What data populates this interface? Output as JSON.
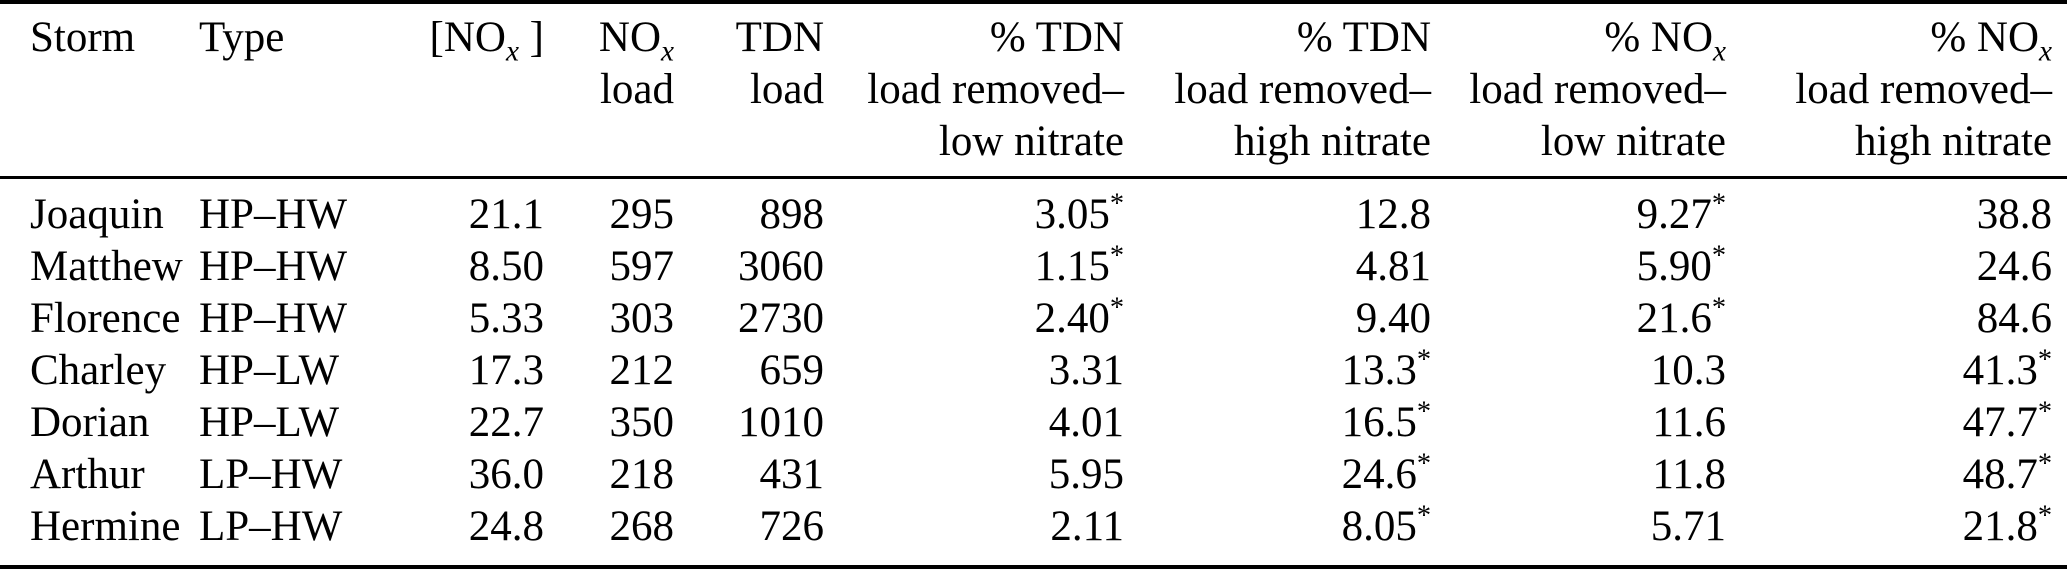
{
  "page": {
    "background": "#ffffff",
    "text_color": "#000000",
    "rule_color": "#000000"
  },
  "table": {
    "columns": [
      {
        "id": "storm",
        "align": "left",
        "label_lines": [
          "Storm"
        ]
      },
      {
        "id": "type",
        "align": "left",
        "label_lines": [
          "Type"
        ]
      },
      {
        "id": "nox-conc",
        "align": "right",
        "label_lines": [
          "[NO_x ]"
        ]
      },
      {
        "id": "nox-load",
        "align": "right",
        "label_lines": [
          "NO_x",
          "load"
        ]
      },
      {
        "id": "tdn-load",
        "align": "right",
        "label_lines": [
          "TDN",
          "load"
        ]
      },
      {
        "id": "pct-tdn-low",
        "align": "right",
        "label_lines": [
          "% TDN",
          "load removed–",
          "low nitrate"
        ]
      },
      {
        "id": "pct-tdn-high",
        "align": "right",
        "label_lines": [
          "% TDN",
          "load removed–",
          "high nitrate"
        ]
      },
      {
        "id": "pct-nox-low",
        "align": "right",
        "label_lines": [
          "% NO_x",
          "load removed–",
          "low nitrate"
        ]
      },
      {
        "id": "pct-nox-high",
        "align": "right",
        "label_lines": [
          "% NO_x",
          "load removed–",
          "high nitrate"
        ]
      }
    ],
    "rows": [
      [
        "Joaquin",
        "HP–HW",
        "21.1",
        "295",
        "898",
        "3.05*",
        "12.8",
        "9.27*",
        "38.8"
      ],
      [
        "Matthew",
        "HP–HW",
        "8.50",
        "597",
        "3060",
        "1.15*",
        "4.81",
        "5.90*",
        "24.6"
      ],
      [
        "Florence",
        "HP–HW",
        "5.33",
        "303",
        "2730",
        "2.40*",
        "9.40",
        "21.6*",
        "84.6"
      ],
      [
        "Charley",
        "HP–LW",
        "17.3",
        "212",
        "659",
        "3.31",
        "13.3*",
        "10.3",
        "41.3*"
      ],
      [
        "Dorian",
        "HP–LW",
        "22.7",
        "350",
        "1010",
        "4.01",
        "16.5*",
        "11.6",
        "47.7*"
      ],
      [
        "Arthur",
        "LP–HW",
        "36.0",
        "218",
        "431",
        "5.95",
        "24.6*",
        "11.8",
        "48.7*"
      ],
      [
        "Hermine",
        "LP–HW",
        "24.8",
        "268",
        "726",
        "2.11",
        "8.05*",
        "5.71",
        "21.8*"
      ]
    ],
    "markers": {
      "significance_marker": "*",
      "subscript_token": "_x"
    }
  },
  "chart_data": {
    "type": "table",
    "categories": [
      "Storm",
      "Type",
      "[NOx]",
      "NOx load",
      "TDN load",
      "% TDN load removed–low nitrate",
      "% TDN load removed–high nitrate",
      "% NOx load removed–low nitrate",
      "% NOx load removed–high nitrate"
    ],
    "rows": [
      [
        "Joaquin",
        "HP–HW",
        21.1,
        295,
        898,
        "3.05*",
        12.8,
        "9.27*",
        38.8
      ],
      [
        "Matthew",
        "HP–HW",
        8.5,
        597,
        3060,
        "1.15*",
        4.81,
        "5.90*",
        24.6
      ],
      [
        "Florence",
        "HP–HW",
        5.33,
        303,
        2730,
        "2.40*",
        9.4,
        "21.6*",
        84.6
      ],
      [
        "Charley",
        "HP–LW",
        17.3,
        212,
        659,
        3.31,
        "13.3*",
        10.3,
        "41.3*"
      ],
      [
        "Dorian",
        "HP–LW",
        22.7,
        350,
        1010,
        4.01,
        "16.5*",
        11.6,
        "47.7*"
      ],
      [
        "Arthur",
        "LP–HW",
        36.0,
        218,
        431,
        5.95,
        "24.6*",
        11.8,
        "48.7*"
      ],
      [
        "Hermine",
        "LP–HW",
        24.8,
        268,
        726,
        2.11,
        "8.05*",
        5.71,
        "21.8*"
      ]
    ]
  }
}
